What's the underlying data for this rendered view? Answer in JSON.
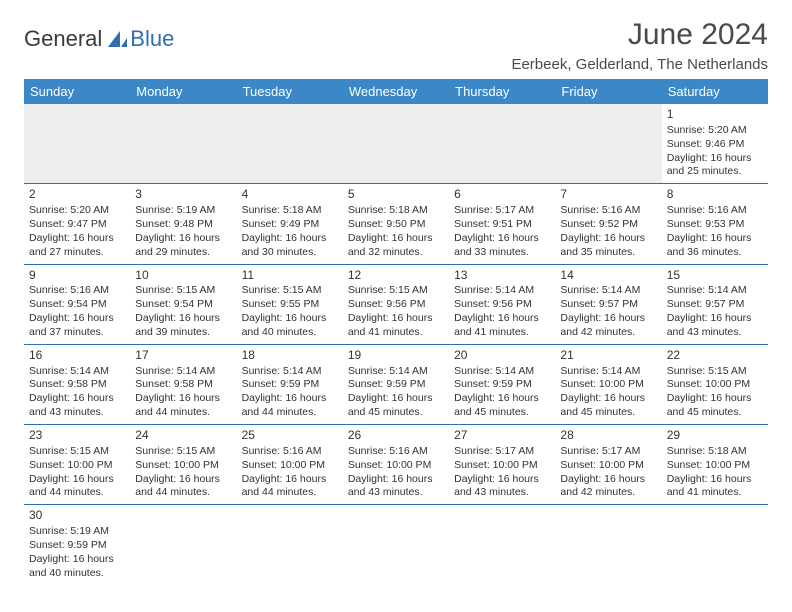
{
  "logo": {
    "text1": "General",
    "text2": "Blue"
  },
  "title": "June 2024",
  "subtitle": "Eerbeek, Gelderland, The Netherlands",
  "theme": {
    "header_bg": "#3c87c7",
    "header_fg": "#ffffff",
    "border_color": "#2f6fb0",
    "blank_bg": "#eeeeee",
    "title_fontsize": 30,
    "subtitle_fontsize": 15,
    "day_header_fontsize": 13,
    "cell_fontsize": 10.5
  },
  "day_headers": [
    "Sunday",
    "Monday",
    "Tuesday",
    "Wednesday",
    "Thursday",
    "Friday",
    "Saturday"
  ],
  "first_weekday_index": 6,
  "days": [
    {
      "n": 1,
      "sunrise": "5:20 AM",
      "sunset": "9:46 PM",
      "dl_h": 16,
      "dl_m": 25
    },
    {
      "n": 2,
      "sunrise": "5:20 AM",
      "sunset": "9:47 PM",
      "dl_h": 16,
      "dl_m": 27
    },
    {
      "n": 3,
      "sunrise": "5:19 AM",
      "sunset": "9:48 PM",
      "dl_h": 16,
      "dl_m": 29
    },
    {
      "n": 4,
      "sunrise": "5:18 AM",
      "sunset": "9:49 PM",
      "dl_h": 16,
      "dl_m": 30
    },
    {
      "n": 5,
      "sunrise": "5:18 AM",
      "sunset": "9:50 PM",
      "dl_h": 16,
      "dl_m": 32
    },
    {
      "n": 6,
      "sunrise": "5:17 AM",
      "sunset": "9:51 PM",
      "dl_h": 16,
      "dl_m": 33
    },
    {
      "n": 7,
      "sunrise": "5:16 AM",
      "sunset": "9:52 PM",
      "dl_h": 16,
      "dl_m": 35
    },
    {
      "n": 8,
      "sunrise": "5:16 AM",
      "sunset": "9:53 PM",
      "dl_h": 16,
      "dl_m": 36
    },
    {
      "n": 9,
      "sunrise": "5:16 AM",
      "sunset": "9:54 PM",
      "dl_h": 16,
      "dl_m": 37
    },
    {
      "n": 10,
      "sunrise": "5:15 AM",
      "sunset": "9:54 PM",
      "dl_h": 16,
      "dl_m": 39
    },
    {
      "n": 11,
      "sunrise": "5:15 AM",
      "sunset": "9:55 PM",
      "dl_h": 16,
      "dl_m": 40
    },
    {
      "n": 12,
      "sunrise": "5:15 AM",
      "sunset": "9:56 PM",
      "dl_h": 16,
      "dl_m": 41
    },
    {
      "n": 13,
      "sunrise": "5:14 AM",
      "sunset": "9:56 PM",
      "dl_h": 16,
      "dl_m": 41
    },
    {
      "n": 14,
      "sunrise": "5:14 AM",
      "sunset": "9:57 PM",
      "dl_h": 16,
      "dl_m": 42
    },
    {
      "n": 15,
      "sunrise": "5:14 AM",
      "sunset": "9:57 PM",
      "dl_h": 16,
      "dl_m": 43
    },
    {
      "n": 16,
      "sunrise": "5:14 AM",
      "sunset": "9:58 PM",
      "dl_h": 16,
      "dl_m": 43
    },
    {
      "n": 17,
      "sunrise": "5:14 AM",
      "sunset": "9:58 PM",
      "dl_h": 16,
      "dl_m": 44
    },
    {
      "n": 18,
      "sunrise": "5:14 AM",
      "sunset": "9:59 PM",
      "dl_h": 16,
      "dl_m": 44
    },
    {
      "n": 19,
      "sunrise": "5:14 AM",
      "sunset": "9:59 PM",
      "dl_h": 16,
      "dl_m": 45
    },
    {
      "n": 20,
      "sunrise": "5:14 AM",
      "sunset": "9:59 PM",
      "dl_h": 16,
      "dl_m": 45
    },
    {
      "n": 21,
      "sunrise": "5:14 AM",
      "sunset": "10:00 PM",
      "dl_h": 16,
      "dl_m": 45
    },
    {
      "n": 22,
      "sunrise": "5:15 AM",
      "sunset": "10:00 PM",
      "dl_h": 16,
      "dl_m": 45
    },
    {
      "n": 23,
      "sunrise": "5:15 AM",
      "sunset": "10:00 PM",
      "dl_h": 16,
      "dl_m": 44
    },
    {
      "n": 24,
      "sunrise": "5:15 AM",
      "sunset": "10:00 PM",
      "dl_h": 16,
      "dl_m": 44
    },
    {
      "n": 25,
      "sunrise": "5:16 AM",
      "sunset": "10:00 PM",
      "dl_h": 16,
      "dl_m": 44
    },
    {
      "n": 26,
      "sunrise": "5:16 AM",
      "sunset": "10:00 PM",
      "dl_h": 16,
      "dl_m": 43
    },
    {
      "n": 27,
      "sunrise": "5:17 AM",
      "sunset": "10:00 PM",
      "dl_h": 16,
      "dl_m": 43
    },
    {
      "n": 28,
      "sunrise": "5:17 AM",
      "sunset": "10:00 PM",
      "dl_h": 16,
      "dl_m": 42
    },
    {
      "n": 29,
      "sunrise": "5:18 AM",
      "sunset": "10:00 PM",
      "dl_h": 16,
      "dl_m": 41
    },
    {
      "n": 30,
      "sunrise": "5:19 AM",
      "sunset": "9:59 PM",
      "dl_h": 16,
      "dl_m": 40
    }
  ],
  "labels": {
    "sunrise": "Sunrise:",
    "sunset": "Sunset:",
    "daylight": "Daylight:",
    "hours": "hours",
    "and": "and",
    "minutes": "minutes."
  }
}
